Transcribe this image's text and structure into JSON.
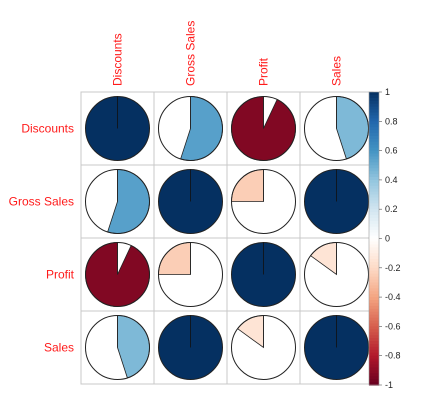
{
  "chart_data": {
    "type": "heatmap",
    "subtype": "correlation-pie-matrix",
    "title": "",
    "variables": [
      "Discounts",
      "Gross Sales",
      "Profit",
      "Sales"
    ],
    "matrix": [
      [
        1.0,
        0.55,
        -0.93,
        0.45
      ],
      [
        0.55,
        1.0,
        -0.25,
        1.0
      ],
      [
        -0.93,
        -0.25,
        1.0,
        -0.15
      ],
      [
        0.45,
        1.0,
        -0.15,
        1.0
      ]
    ],
    "legend": {
      "position": "right",
      "range": [
        -1,
        1
      ],
      "ticks": [
        "1",
        "0.8",
        "0.6",
        "0.4",
        "0.2",
        "0",
        "-0.2",
        "-0.4",
        "-0.6",
        "-0.8",
        "-1"
      ]
    },
    "colors": {
      "label": "#ff1a1a",
      "scale": [
        "#67001f",
        "#b2182b",
        "#d6604d",
        "#f4a582",
        "#fddbc7",
        "#ffffff",
        "#d1e5f0",
        "#92c5de",
        "#4393c3",
        "#2166ac",
        "#053061"
      ]
    },
    "grid": true
  }
}
